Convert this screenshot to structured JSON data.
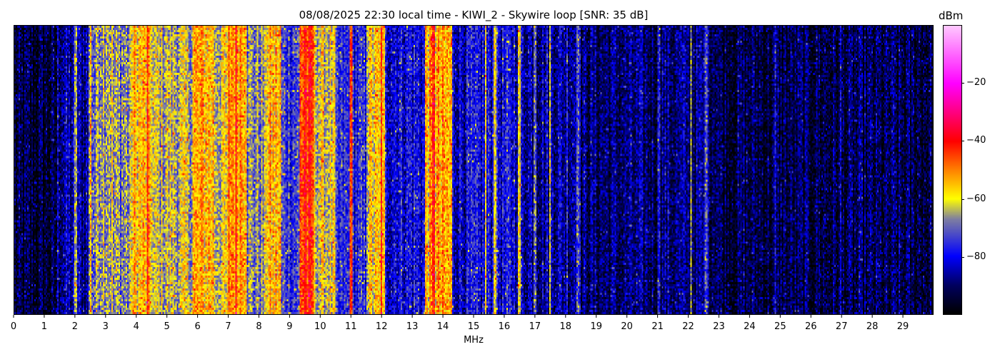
{
  "chart_data": {
    "type": "heatmap",
    "title": "08/08/2025 22:30 local time - KIWI_2 - Skywire loop [SNR: 35 dB]",
    "xlabel": "MHz",
    "xlim": [
      0,
      30
    ],
    "xticks": [
      0,
      1,
      2,
      3,
      4,
      5,
      6,
      7,
      8,
      9,
      10,
      11,
      12,
      13,
      14,
      15,
      16,
      17,
      18,
      19,
      20,
      21,
      22,
      23,
      24,
      25,
      26,
      27,
      28,
      29
    ],
    "colorbar": {
      "label": "dBm",
      "range": [
        -100,
        0
      ],
      "ticks": [
        -20,
        -40,
        -60,
        -80
      ],
      "colormap": [
        "#000000",
        "#000060",
        "#0000ff",
        "#8080a0",
        "#ffff00",
        "#ff8000",
        "#ff0000",
        "#ff00ff",
        "#ffc8ff"
      ]
    },
    "band_profile_dbm": [
      {
        "from": 0,
        "to": 1.4,
        "level": -95
      },
      {
        "from": 1.4,
        "to": 2.4,
        "level": -86
      },
      {
        "from": 2.4,
        "to": 2.7,
        "level": -70
      },
      {
        "from": 2.7,
        "to": 3.2,
        "level": -63
      },
      {
        "from": 3.2,
        "to": 3.8,
        "level": -68
      },
      {
        "from": 3.8,
        "to": 4.5,
        "level": -57
      },
      {
        "from": 4.5,
        "to": 5.8,
        "level": -64
      },
      {
        "from": 5.8,
        "to": 6.5,
        "level": -55
      },
      {
        "from": 6.5,
        "to": 7.0,
        "level": -62
      },
      {
        "from": 7.0,
        "to": 7.6,
        "level": -50
      },
      {
        "from": 7.6,
        "to": 8.2,
        "level": -68
      },
      {
        "from": 8.2,
        "to": 8.7,
        "level": -56
      },
      {
        "from": 8.7,
        "to": 9.3,
        "level": -74
      },
      {
        "from": 9.3,
        "to": 9.8,
        "level": -45
      },
      {
        "from": 9.8,
        "to": 10.5,
        "level": -62
      },
      {
        "from": 10.5,
        "to": 11.5,
        "level": -78
      },
      {
        "from": 11.5,
        "to": 12.1,
        "level": -60
      },
      {
        "from": 12.1,
        "to": 13.4,
        "level": -80
      },
      {
        "from": 13.4,
        "to": 14.3,
        "level": -55
      },
      {
        "from": 14.3,
        "to": 15.3,
        "level": -82
      },
      {
        "from": 15.3,
        "to": 16.5,
        "level": -81
      },
      {
        "from": 16.5,
        "to": 18.5,
        "level": -85
      },
      {
        "from": 18.5,
        "to": 21,
        "level": -90
      },
      {
        "from": 21,
        "to": 23,
        "level": -89
      },
      {
        "from": 23,
        "to": 30,
        "level": -93
      }
    ],
    "carriers_mhz": [
      {
        "f": 2.0,
        "level": -65
      },
      {
        "f": 2.5,
        "level": -55
      },
      {
        "f": 4.35,
        "level": -42
      },
      {
        "f": 7.25,
        "level": -40
      },
      {
        "f": 9.5,
        "level": -40
      },
      {
        "f": 11.0,
        "level": -45
      },
      {
        "f": 12.0,
        "level": -42
      },
      {
        "f": 13.7,
        "level": -42
      },
      {
        "f": 15.4,
        "level": -58
      },
      {
        "f": 15.7,
        "level": -60
      },
      {
        "f": 16.5,
        "level": -60
      },
      {
        "f": 17.0,
        "level": -70
      },
      {
        "f": 17.5,
        "level": -62
      },
      {
        "f": 18.05,
        "level": -75
      },
      {
        "f": 18.4,
        "level": -72
      },
      {
        "f": 21.05,
        "level": -78
      },
      {
        "f": 22.1,
        "level": -65
      },
      {
        "f": 22.6,
        "level": -72
      },
      {
        "f": 24.85,
        "level": -80
      },
      {
        "f": 27.0,
        "level": -82
      }
    ]
  }
}
